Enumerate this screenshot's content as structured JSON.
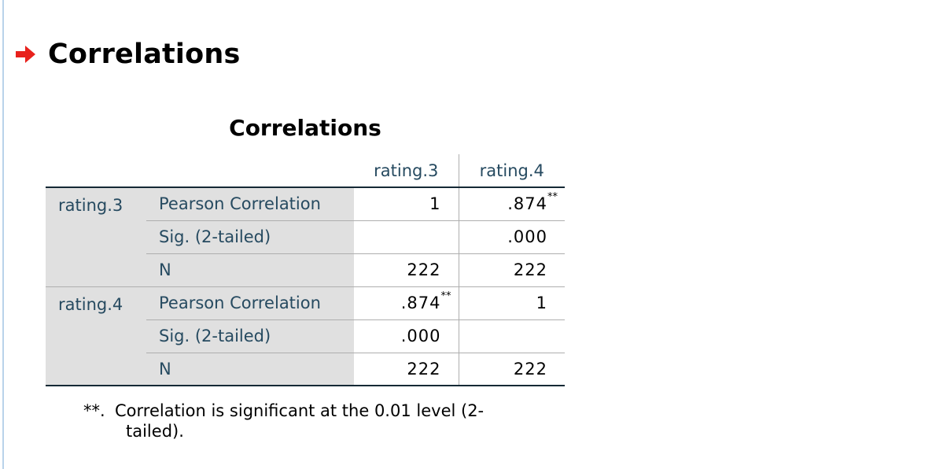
{
  "heading": "Correlations",
  "table": {
    "title": "Correlations",
    "columns": [
      "rating.3",
      "rating.4"
    ],
    "groups": [
      {
        "label": "rating.3",
        "rows": [
          {
            "stat": "Pearson Correlation",
            "values": [
              "1",
              ".874"
            ],
            "marks": [
              "",
              "**"
            ]
          },
          {
            "stat": "Sig. (2-tailed)",
            "values": [
              "",
              ".000"
            ],
            "marks": [
              "",
              ""
            ]
          },
          {
            "stat": "N",
            "values": [
              "222",
              "222"
            ],
            "marks": [
              "",
              ""
            ]
          }
        ]
      },
      {
        "label": "rating.4",
        "rows": [
          {
            "stat": "Pearson Correlation",
            "values": [
              ".874",
              "1"
            ],
            "marks": [
              "**",
              ""
            ]
          },
          {
            "stat": "Sig. (2-tailed)",
            "values": [
              ".000",
              ""
            ],
            "marks": [
              "",
              ""
            ]
          },
          {
            "stat": "N",
            "values": [
              "222",
              "222"
            ],
            "marks": [
              "",
              ""
            ]
          }
        ]
      }
    ]
  },
  "footnote": {
    "mark": "**.",
    "line1": "Correlation is significant at the 0.01 level (2-",
    "line2": "tailed)."
  },
  "colors": {
    "arrow": "#e8211c",
    "header_text": "#264a60",
    "label_bg": "#e0e0e0",
    "rule_dark": "#152935",
    "rule_light": "#aeaeae"
  },
  "icons": {
    "heading_icon": "right-arrow-icon"
  }
}
